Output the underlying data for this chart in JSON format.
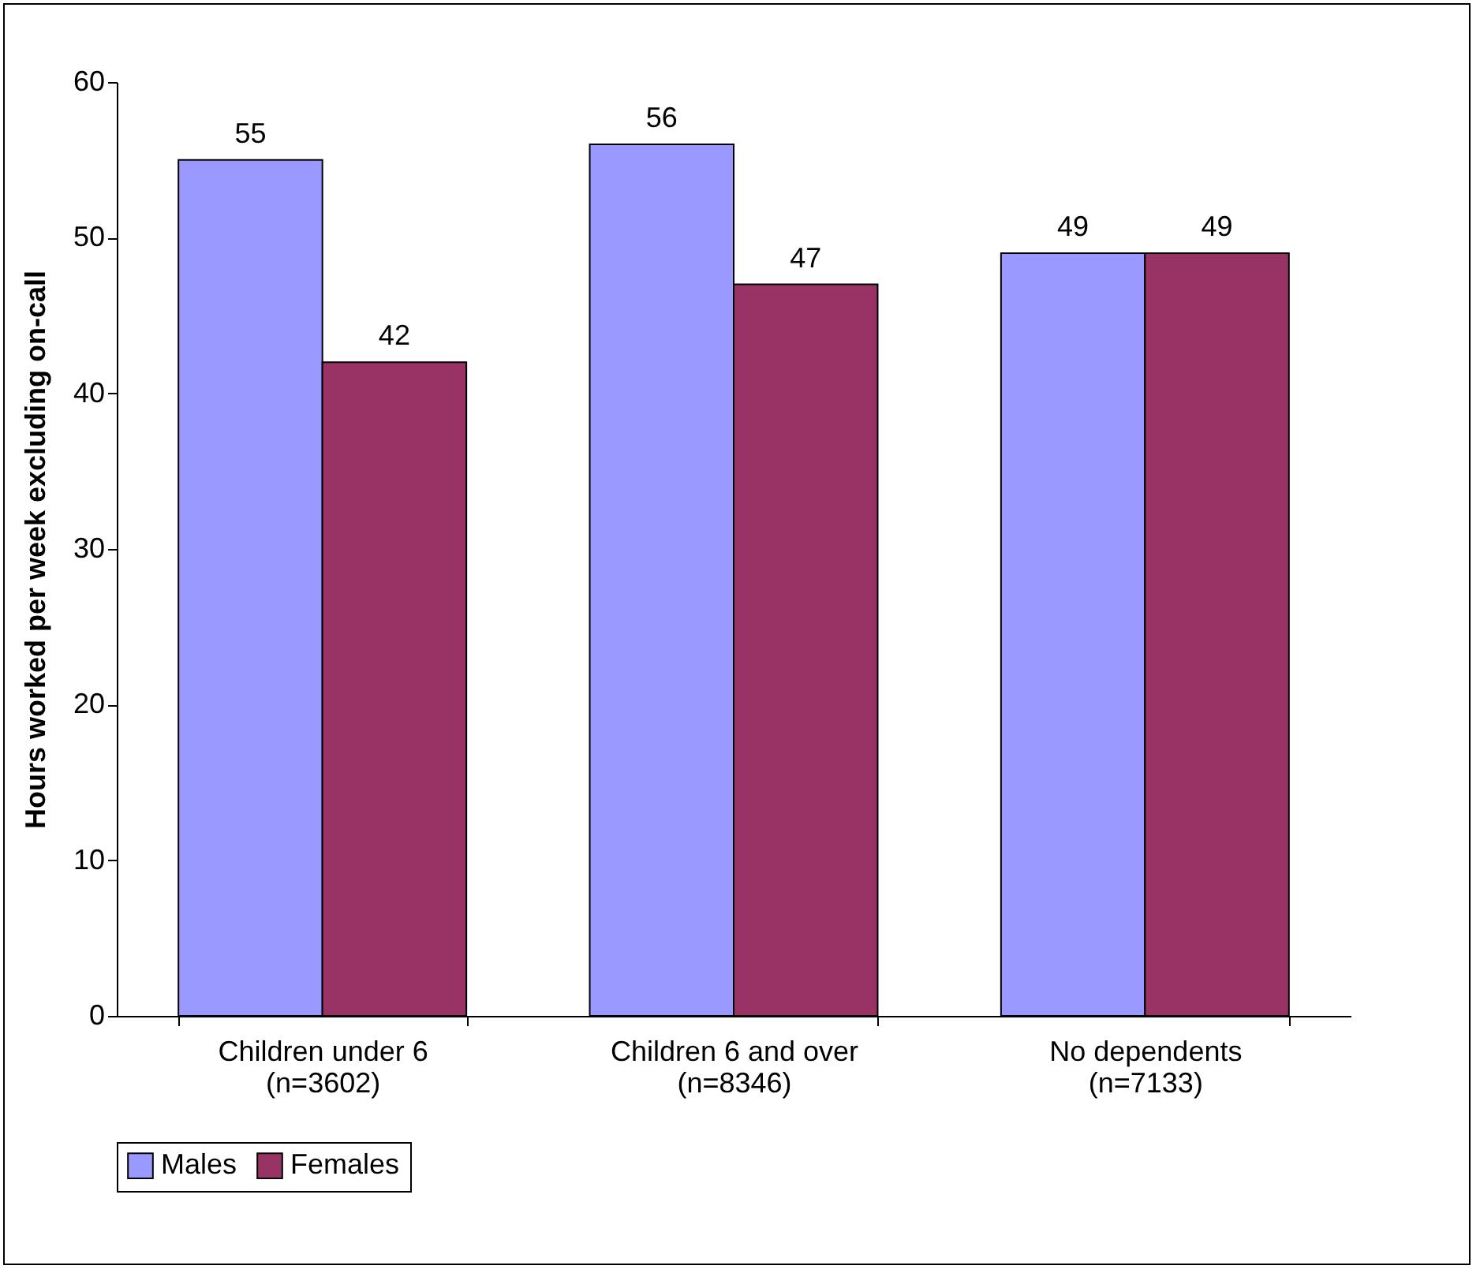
{
  "chart_data": {
    "type": "bar",
    "categories": [
      "Children under 6\n(n=3602)",
      "Children 6 and over\n(n=8346)",
      "No dependents\n(n=7133)"
    ],
    "ylabel": "Hours worked per week excluding on-call",
    "series": [
      {
        "name": "Males",
        "color": "#9999ff",
        "values": [
          55,
          56,
          49
        ]
      },
      {
        "name": "Females",
        "color": "#993366",
        "values": [
          42,
          47,
          49
        ]
      }
    ],
    "ylim": [
      0,
      60
    ],
    "yticks": [
      0,
      10,
      20,
      30,
      40,
      50,
      60
    ],
    "data_labels": true,
    "grid": false,
    "legend": "bottom"
  }
}
